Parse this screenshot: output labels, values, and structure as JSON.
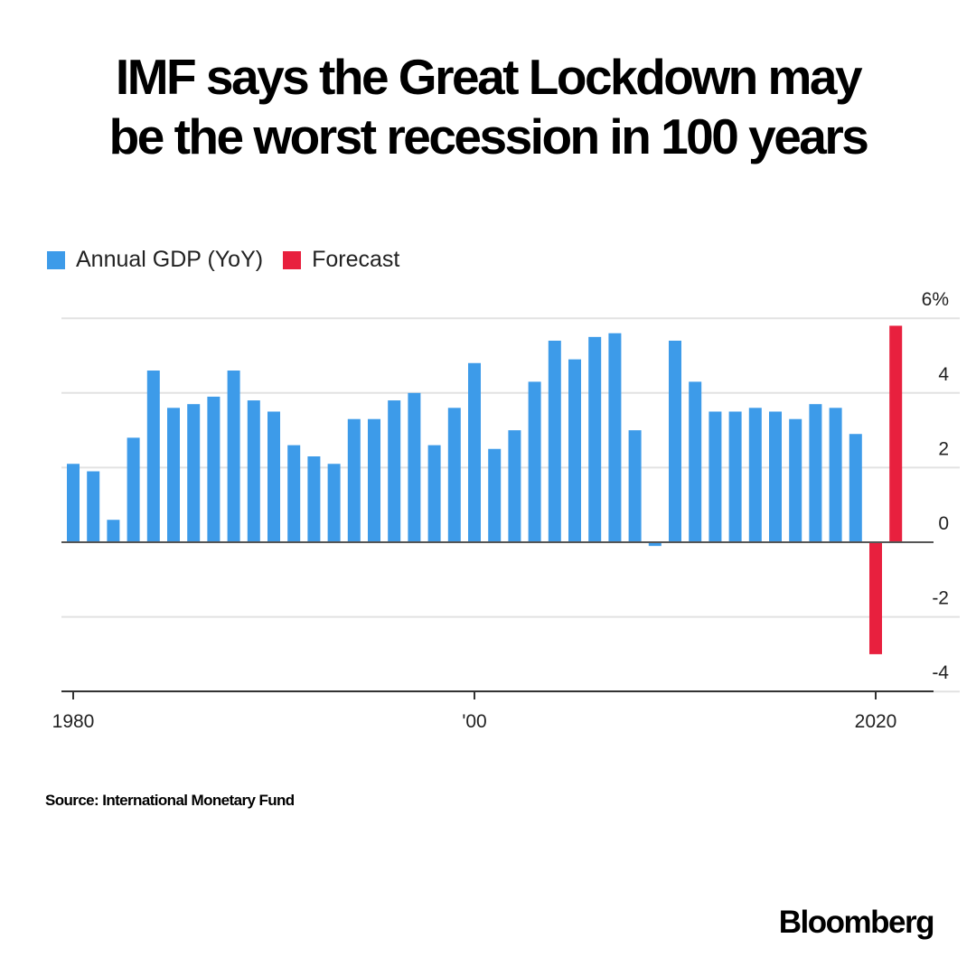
{
  "title_line1": "IMF says the Great Lockdown may",
  "title_line2": "be the worst recession in 100 years",
  "source": "Source: International Monetary Fund",
  "brand": "Bloomberg",
  "colors": {
    "actual": "#3d9be9",
    "forecast": "#e8203e",
    "grid": "#e2e2e2",
    "axis": "#333333"
  },
  "chart_data": {
    "type": "bar",
    "title": "IMF says the Great Lockdown may be the worst recession in 100 years",
    "xlabel": "",
    "ylabel": "",
    "ylim": [
      -4,
      6
    ],
    "y_ticks": [
      {
        "value": 6,
        "label": "6%"
      },
      {
        "value": 4,
        "label": "4"
      },
      {
        "value": 2,
        "label": "2"
      },
      {
        "value": 0,
        "label": "0"
      },
      {
        "value": -2,
        "label": "-2"
      },
      {
        "value": -4,
        "label": "-4"
      }
    ],
    "x_ticks": [
      {
        "year": 1980,
        "label": "1980"
      },
      {
        "year": 2000,
        "label": "'00"
      },
      {
        "year": 2020,
        "label": "2020"
      }
    ],
    "legend": [
      {
        "name": "Annual GDP (YoY)",
        "color": "#3d9be9"
      },
      {
        "name": "Forecast",
        "color": "#e8203e"
      }
    ],
    "legend_position": "top-left",
    "series": [
      {
        "name": "Annual GDP (YoY)",
        "x": [
          1980,
          1981,
          1982,
          1983,
          1984,
          1985,
          1986,
          1987,
          1988,
          1989,
          1990,
          1991,
          1992,
          1993,
          1994,
          1995,
          1996,
          1997,
          1998,
          1999,
          2000,
          2001,
          2002,
          2003,
          2004,
          2005,
          2006,
          2007,
          2008,
          2009,
          2010,
          2011,
          2012,
          2013,
          2014,
          2015,
          2016,
          2017,
          2018,
          2019
        ],
        "values": [
          2.1,
          1.9,
          0.6,
          2.8,
          4.6,
          3.6,
          3.7,
          3.9,
          4.6,
          3.8,
          3.5,
          2.6,
          2.3,
          2.1,
          3.3,
          3.3,
          3.8,
          4.0,
          2.6,
          3.6,
          4.8,
          2.5,
          3.0,
          4.3,
          5.4,
          4.9,
          5.5,
          5.6,
          3.0,
          -0.1,
          5.4,
          4.3,
          3.5,
          3.5,
          3.6,
          3.5,
          3.3,
          3.7,
          3.6,
          2.9
        ]
      },
      {
        "name": "Forecast",
        "x": [
          2020,
          2021
        ],
        "values": [
          -3.0,
          5.8
        ]
      }
    ]
  }
}
